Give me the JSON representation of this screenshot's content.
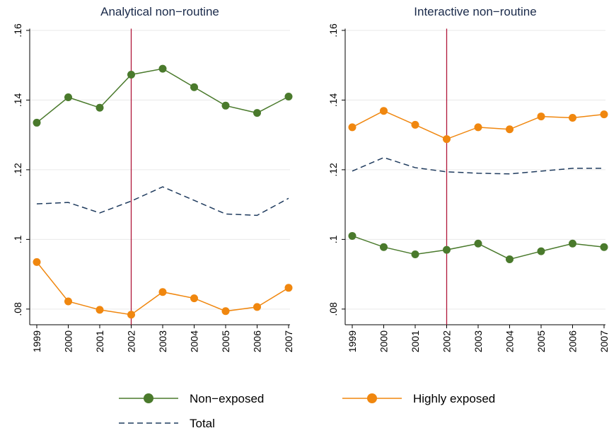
{
  "chart_data": [
    {
      "type": "line",
      "title": "Analytical non−routine",
      "categories": [
        "1999",
        "2000",
        "2001",
        "2002",
        "2003",
        "2004",
        "2005",
        "2006",
        "2007"
      ],
      "series": [
        {
          "name": "Non−exposed",
          "color": "#4a7a2c",
          "marker": true,
          "values": [
            0.1335,
            0.1408,
            0.1378,
            0.1473,
            0.149,
            0.1437,
            0.1384,
            0.1363,
            0.141
          ]
        },
        {
          "name": "Highly exposed",
          "color": "#f0870f",
          "marker": true,
          "values": [
            0.0935,
            0.0822,
            0.0798,
            0.0784,
            0.0849,
            0.0831,
            0.0794,
            0.0806,
            0.0861
          ]
        },
        {
          "name": "Total",
          "color": "#1f3b5e",
          "dashed": true,
          "values": [
            0.1102,
            0.1106,
            0.1076,
            0.111,
            0.1151,
            0.1112,
            0.1073,
            0.1069,
            0.1118
          ]
        }
      ],
      "ylim": [
        0.0755,
        0.1605
      ],
      "yticks": [
        {
          "value": 0.08,
          "label": ".08"
        },
        {
          "value": 0.1,
          "label": ".1"
        },
        {
          "value": 0.12,
          "label": ".12"
        },
        {
          "value": 0.14,
          "label": ".14"
        },
        {
          "value": 0.16,
          "label": ".16"
        }
      ],
      "grid": true,
      "vline": "2002",
      "vline_color": "#b0173a"
    },
    {
      "type": "line",
      "title": "Interactive non−routine",
      "categories": [
        "1999",
        "2000",
        "2001",
        "2002",
        "2003",
        "2004",
        "2005",
        "2006",
        "2007"
      ],
      "series": [
        {
          "color": "#4a7a2c",
          "marker": true,
          "values": [
            0.101,
            0.0978,
            0.0957,
            0.097,
            0.0988,
            0.0943,
            0.0966,
            0.0988,
            0.0978
          ]
        },
        {
          "color": "#f0870f",
          "marker": true,
          "values": [
            0.1322,
            0.1369,
            0.1329,
            0.1288,
            0.1322,
            0.1316,
            0.1353,
            0.1349,
            0.1359
          ]
        },
        {
          "color": "#1f3b5e",
          "dashed": true,
          "values": [
            0.1196,
            0.1235,
            0.1206,
            0.1194,
            0.119,
            0.1188,
            0.1196,
            0.1204,
            0.1204
          ]
        }
      ],
      "ylim": [
        0.0755,
        0.1605
      ],
      "yticks": [
        {
          "value": 0.08,
          "label": ".08"
        },
        {
          "value": 0.1,
          "label": ".1"
        },
        {
          "value": 0.12,
          "label": ".12"
        },
        {
          "value": 0.14,
          "label": ".14"
        },
        {
          "value": 0.16,
          "label": ".16"
        }
      ],
      "grid": true,
      "vline": "2002",
      "vline_color": "#b0173a"
    }
  ]
}
